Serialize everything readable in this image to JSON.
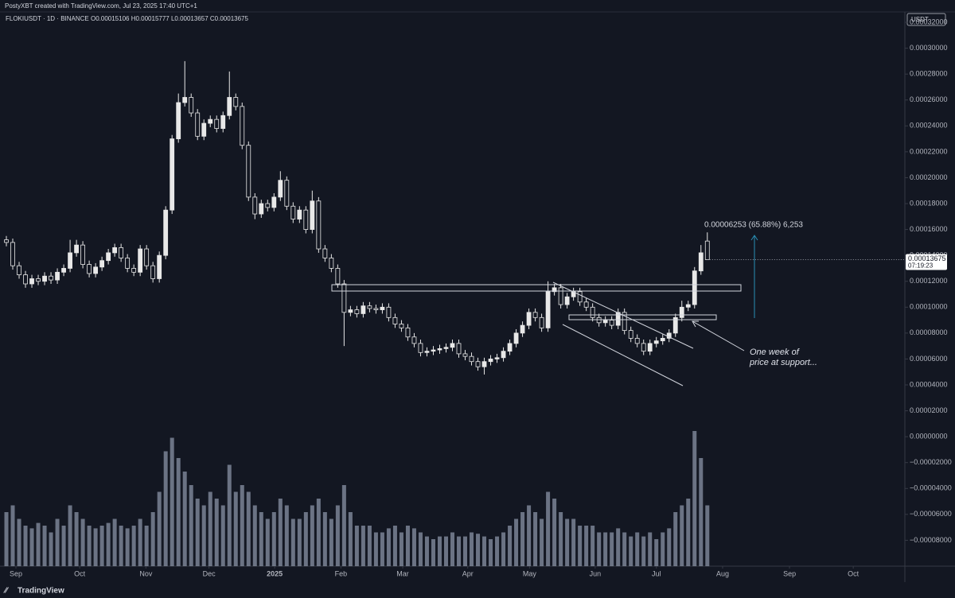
{
  "header": {
    "text": "PostyXBT created with TradingView.com, Jul 23, 2025 17:40 UTC+1"
  },
  "footer": {
    "brand": "TradingView"
  },
  "chart_data": {
    "type": "candlestick",
    "title": "FLOKIUSDT · 1D · BINANCE  O0.00015106 H0.00015777 L0.00013657 C0.00013675",
    "currency": "USDT",
    "last_price_label": "0.00013675",
    "countdown": "07:19:23",
    "measure_label": "0.00006253 (65.88%) 6,253",
    "note": [
      "One week of",
      "price at support..."
    ],
    "color": "#e8e8e8",
    "volume_color": "#8a93a6",
    "grid": false,
    "xlim": [
      -1,
      141
    ],
    "xticks": [
      {
        "value": 1.5,
        "label": "Sep"
      },
      {
        "value": 11.5,
        "label": "Oct"
      },
      {
        "value": 21.9,
        "label": "Nov"
      },
      {
        "value": 31.8,
        "label": "Dec"
      },
      {
        "value": 42.1,
        "label": "2025"
      },
      {
        "value": 52.5,
        "label": "Feb"
      },
      {
        "value": 62.2,
        "label": "Mar"
      },
      {
        "value": 72.4,
        "label": "Apr"
      },
      {
        "value": 82.1,
        "label": "May"
      },
      {
        "value": 92.4,
        "label": "Jun"
      },
      {
        "value": 102,
        "label": "Jul"
      },
      {
        "value": 112.4,
        "label": "Aug"
      },
      {
        "value": 122.9,
        "label": "Sep"
      },
      {
        "value": 132.9,
        "label": "Oct"
      }
    ],
    "ylim": [
      -0.0001,
      0.000328
    ],
    "yticks": [
      {
        "value": 0.00032,
        "label": "0.00032000"
      },
      {
        "value": 0.0003,
        "label": "0.00030000"
      },
      {
        "value": 0.00028,
        "label": "0.00028000"
      },
      {
        "value": 0.00026,
        "label": "0.00026000"
      },
      {
        "value": 0.00024,
        "label": "0.00024000"
      },
      {
        "value": 0.00022,
        "label": "0.00022000"
      },
      {
        "value": 0.0002,
        "label": "0.00020000"
      },
      {
        "value": 0.00018,
        "label": "0.00018000"
      },
      {
        "value": 0.00016,
        "label": "0.00016000"
      },
      {
        "value": 0.00014,
        "label": "0.00014000"
      },
      {
        "value": 0.00012,
        "label": "0.00012000"
      },
      {
        "value": 0.0001,
        "label": "0.00010000"
      },
      {
        "value": 8e-05,
        "label": "0.00008000"
      },
      {
        "value": 6e-05,
        "label": "0.00006000"
      },
      {
        "value": 4e-05,
        "label": "0.00004000"
      },
      {
        "value": 2e-05,
        "label": "0.00002000"
      },
      {
        "value": 0,
        "label": "0.00000000"
      },
      {
        "value": -2e-05,
        "label": "−0.00002000"
      },
      {
        "value": -4e-05,
        "label": "−0.00004000"
      },
      {
        "value": -6e-05,
        "label": "−0.00006000"
      },
      {
        "value": -8e-05,
        "label": "−0.00008000"
      }
    ],
    "open": [
      0.000152,
      0.00015,
      0.000132,
      0.000125,
      0.000118,
      0.000122,
      0.00012,
      0.000124,
      0.000121,
      0.000127,
      0.00013,
      0.000142,
      0.000148,
      0.000133,
      0.000126,
      0.000131,
      0.000136,
      0.000142,
      0.000146,
      0.000138,
      0.00013,
      0.000127,
      0.000145,
      0.000132,
      0.000122,
      0.00014,
      0.000175,
      0.00023,
      0.000258,
      0.000262,
      0.00025,
      0.000232,
      0.000242,
      0.000245,
      0.000238,
      0.000248,
      0.000262,
      0.000255,
      0.000225,
      0.000185,
      0.000172,
      0.00018,
      0.000177,
      0.000185,
      0.000198,
      0.000178,
      0.000168,
      0.000175,
      0.00016,
      0.000182,
      0.000145,
      0.000138,
      0.00013,
      0.000118,
      9.6e-05,
      9.8e-05,
      9.5e-05,
      0.000101,
      9.9e-05,
      9.8e-05,
      0.0001,
      9.2e-05,
      8.7e-05,
      8.4e-05,
      7.7e-05,
      7.2e-05,
      6.5e-05,
      6.6e-05,
      6.7e-05,
      6.8e-05,
      6.9e-05,
      7.2e-05,
      6.4e-05,
      6.2e-05,
      5.8e-05,
      5.4e-05,
      5.8e-05,
      6e-05,
      6.1e-05,
      6.6e-05,
      7.2e-05,
      8e-05,
      8.6e-05,
      9.6e-05,
      9.2e-05,
      8.4e-05,
      0.000112,
      0.000115,
      0.000102,
      0.000108,
      0.000112,
      0.000104,
      0.0001,
      9.2e-05,
      8.8e-05,
      9e-05,
      8.6e-05,
      9.6e-05,
      8.2e-05,
      7.6e-05,
      7.2e-05,
      6.6e-05,
      7.2e-05,
      7.4e-05,
      7.6e-05,
      8e-05,
      9.2e-05,
      0.0001,
      0.000102,
      0.000128,
      0.00015106
    ],
    "high": [
      0.000155,
      0.000153,
      0.000135,
      0.000128,
      0.000125,
      0.000125,
      0.000127,
      0.000127,
      0.00013,
      0.000133,
      0.000152,
      0.000152,
      0.000151,
      0.000136,
      0.000134,
      0.000139,
      0.000145,
      0.000149,
      0.000149,
      0.000141,
      0.000133,
      0.000148,
      0.000148,
      0.000135,
      0.000143,
      0.000178,
      0.000233,
      0.000265,
      0.00029,
      0.000265,
      0.000253,
      0.000245,
      0.000248,
      0.000248,
      0.000251,
      0.000282,
      0.000265,
      0.000258,
      0.000228,
      0.000188,
      0.000183,
      0.000183,
      0.000188,
      0.000205,
      0.000201,
      0.000181,
      0.000178,
      0.000178,
      0.00019,
      0.000185,
      0.000148,
      0.000141,
      0.000133,
      0.000121,
      0.000101,
      0.000101,
      0.000104,
      0.000104,
      0.000102,
      0.000103,
      0.000103,
      9.5e-05,
      9e-05,
      8.7e-05,
      8e-05,
      7.5e-05,
      6.9e-05,
      7e-05,
      7.1e-05,
      7.2e-05,
      7.5e-05,
      7.5e-05,
      6.7e-05,
      6.5e-05,
      6.1e-05,
      6.1e-05,
      6.3e-05,
      6.4e-05,
      6.9e-05,
      7.5e-05,
      8.3e-05,
      8.9e-05,
      9.9e-05,
      9.9e-05,
      9.5e-05,
      0.00012,
      0.000118,
      0.000118,
      0.000111,
      0.000115,
      0.000115,
      0.000107,
      0.000103,
      9.5e-05,
      9.3e-05,
      9.3e-05,
      9.9e-05,
      9.9e-05,
      8.5e-05,
      7.9e-05,
      7.5e-05,
      7.5e-05,
      7.7e-05,
      7.9e-05,
      8.3e-05,
      9.5e-05,
      0.000105,
      0.000105,
      0.000131,
      0.000148,
      0.00015777
    ],
    "low": [
      0.000147,
      0.000129,
      0.000122,
      0.000115,
      0.000115,
      0.000117,
      0.000117,
      0.000118,
      0.000118,
      0.000124,
      0.000127,
      0.000139,
      0.00013,
      0.000123,
      0.000123,
      0.000128,
      0.000133,
      0.000139,
      0.000135,
      0.000127,
      0.000124,
      0.000124,
      0.000129,
      0.000119,
      0.000119,
      0.000137,
      0.000172,
      0.000227,
      0.000255,
      0.000247,
      0.000229,
      0.000229,
      0.000239,
      0.000235,
      0.000235,
      0.000245,
      0.000252,
      0.000222,
      0.000182,
      0.000168,
      0.000169,
      0.000174,
      0.000174,
      0.000182,
      0.000175,
      0.000165,
      0.000165,
      0.000157,
      0.000157,
      0.000142,
      0.000135,
      0.000127,
      0.000115,
      7e-05,
      9.3e-05,
      9.2e-05,
      9.2e-05,
      9.6e-05,
      9.5e-05,
      9.5e-05,
      8.9e-05,
      8.4e-05,
      8.1e-05,
      7.4e-05,
      6.9e-05,
      6.2e-05,
      6.2e-05,
      6.3e-05,
      6.4e-05,
      6.5e-05,
      6.6e-05,
      6.1e-05,
      5.9e-05,
      5.5e-05,
      5.1e-05,
      4.8e-05,
      5.5e-05,
      5.7e-05,
      5.8e-05,
      6.3e-05,
      6.9e-05,
      7.7e-05,
      8.3e-05,
      8.9e-05,
      8.1e-05,
      8.1e-05,
      0.000109,
      9.9e-05,
      9.9e-05,
      0.000105,
      0.000101,
      9.7e-05,
      8.9e-05,
      8.5e-05,
      8.5e-05,
      8.3e-05,
      8.3e-05,
      7.9e-05,
      7.3e-05,
      6.9e-05,
      6.3e-05,
      6.3e-05,
      6.9e-05,
      7.1e-05,
      7.3e-05,
      7.7e-05,
      8.9e-05,
      9.7e-05,
      9.9e-05,
      0.000125,
      0.00013657
    ],
    "close": [
      0.00015,
      0.000132,
      0.000125,
      0.000118,
      0.000122,
      0.00012,
      0.000124,
      0.000121,
      0.000127,
      0.00013,
      0.000142,
      0.000148,
      0.000133,
      0.000126,
      0.000131,
      0.000136,
      0.000142,
      0.000146,
      0.000138,
      0.00013,
      0.000127,
      0.000145,
      0.000132,
      0.000122,
      0.00014,
      0.000175,
      0.00023,
      0.000258,
      0.000262,
      0.00025,
      0.000232,
      0.000242,
      0.000245,
      0.000238,
      0.000248,
      0.000262,
      0.000255,
      0.000225,
      0.000185,
      0.000172,
      0.00018,
      0.000177,
      0.000185,
      0.000198,
      0.000178,
      0.000168,
      0.000175,
      0.00016,
      0.000182,
      0.000145,
      0.000138,
      0.00013,
      0.000118,
      9.6e-05,
      9.8e-05,
      9.5e-05,
      0.000101,
      9.9e-05,
      9.8e-05,
      0.0001,
      9.2e-05,
      8.7e-05,
      8.4e-05,
      7.7e-05,
      7.2e-05,
      6.5e-05,
      6.6e-05,
      6.7e-05,
      6.8e-05,
      6.9e-05,
      7.2e-05,
      6.4e-05,
      6.2e-05,
      5.8e-05,
      5.4e-05,
      5.8e-05,
      6e-05,
      6.1e-05,
      6.6e-05,
      7.2e-05,
      8e-05,
      8.6e-05,
      9.6e-05,
      9.2e-05,
      8.4e-05,
      0.000112,
      0.000115,
      0.000102,
      0.000108,
      0.000112,
      0.000104,
      0.0001,
      9.2e-05,
      8.8e-05,
      9e-05,
      8.6e-05,
      9.6e-05,
      8.2e-05,
      7.6e-05,
      7.2e-05,
      6.6e-05,
      7.2e-05,
      7.4e-05,
      7.6e-05,
      8e-05,
      9.2e-05,
      0.0001,
      0.000102,
      0.000128,
      0.000142,
      0.00013675
    ],
    "volume": [
      40,
      45,
      35,
      30,
      28,
      32,
      30,
      25,
      35,
      30,
      45,
      40,
      35,
      30,
      28,
      30,
      32,
      35,
      30,
      28,
      30,
      35,
      30,
      40,
      55,
      85,
      95,
      80,
      70,
      60,
      50,
      45,
      55,
      50,
      45,
      75,
      55,
      60,
      55,
      45,
      40,
      35,
      40,
      50,
      45,
      35,
      35,
      40,
      45,
      50,
      40,
      35,
      45,
      60,
      40,
      30,
      30,
      30,
      25,
      25,
      28,
      30,
      25,
      30,
      28,
      25,
      22,
      20,
      22,
      22,
      25,
      22,
      22,
      25,
      24,
      22,
      20,
      22,
      25,
      30,
      35,
      40,
      45,
      40,
      35,
      55,
      50,
      40,
      35,
      35,
      30,
      30,
      30,
      25,
      25,
      25,
      28,
      25,
      22,
      25,
      22,
      25,
      20,
      25,
      28,
      40,
      45,
      50,
      100,
      80,
      45
    ]
  }
}
